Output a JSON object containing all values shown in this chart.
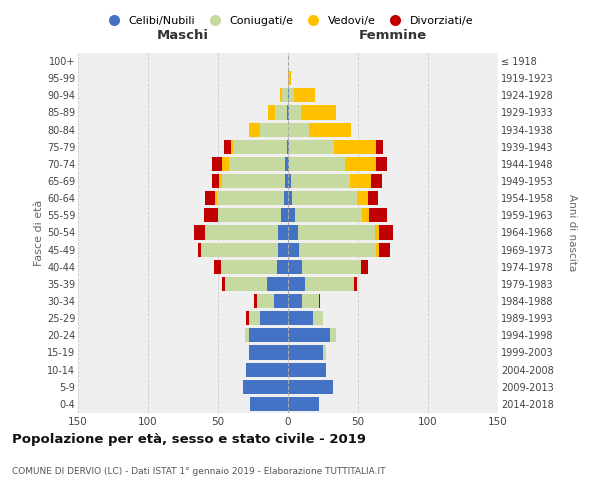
{
  "age_groups": [
    "0-4",
    "5-9",
    "10-14",
    "15-19",
    "20-24",
    "25-29",
    "30-34",
    "35-39",
    "40-44",
    "45-49",
    "50-54",
    "55-59",
    "60-64",
    "65-69",
    "70-74",
    "75-79",
    "80-84",
    "85-89",
    "90-94",
    "95-99",
    "100+"
  ],
  "birth_years": [
    "2014-2018",
    "2009-2013",
    "2004-2008",
    "1999-2003",
    "1994-1998",
    "1989-1993",
    "1984-1988",
    "1979-1983",
    "1974-1978",
    "1969-1973",
    "1964-1968",
    "1959-1963",
    "1954-1958",
    "1949-1953",
    "1944-1948",
    "1939-1943",
    "1934-1938",
    "1929-1933",
    "1924-1928",
    "1919-1923",
    "≤ 1918"
  ],
  "males": {
    "celibi": [
      27,
      32,
      30,
      28,
      28,
      20,
      10,
      15,
      8,
      7,
      7,
      5,
      3,
      2,
      2,
      1,
      0,
      1,
      0,
      0,
      0
    ],
    "coniugati": [
      0,
      0,
      0,
      0,
      3,
      8,
      12,
      30,
      40,
      55,
      52,
      45,
      48,
      45,
      40,
      38,
      20,
      8,
      4,
      0,
      0
    ],
    "vedovi": [
      0,
      0,
      0,
      0,
      0,
      0,
      0,
      0,
      0,
      0,
      0,
      0,
      1,
      2,
      5,
      2,
      8,
      5,
      2,
      0,
      0
    ],
    "divorziati": [
      0,
      0,
      0,
      0,
      0,
      2,
      2,
      2,
      5,
      2,
      8,
      10,
      7,
      5,
      7,
      5,
      0,
      0,
      0,
      0,
      0
    ]
  },
  "females": {
    "nubili": [
      22,
      32,
      27,
      25,
      30,
      18,
      10,
      12,
      10,
      8,
      7,
      5,
      3,
      2,
      1,
      1,
      0,
      1,
      1,
      0,
      0
    ],
    "coniugate": [
      0,
      0,
      0,
      2,
      4,
      7,
      12,
      35,
      42,
      55,
      55,
      48,
      46,
      42,
      40,
      32,
      15,
      8,
      3,
      0,
      0
    ],
    "vedove": [
      0,
      0,
      0,
      0,
      0,
      0,
      0,
      0,
      0,
      2,
      3,
      5,
      8,
      15,
      22,
      30,
      30,
      25,
      15,
      2,
      0
    ],
    "divorziate": [
      0,
      0,
      0,
      0,
      0,
      0,
      1,
      2,
      5,
      8,
      10,
      13,
      7,
      8,
      8,
      5,
      0,
      0,
      0,
      0,
      0
    ]
  },
  "colors": {
    "celibi": "#4472c4",
    "coniugati": "#c5d9a0",
    "vedovi": "#ffc000",
    "divorziati": "#c00000"
  },
  "title": "Popolazione per età, sesso e stato civile - 2019",
  "subtitle": "COMUNE DI DERVIO (LC) - Dati ISTAT 1° gennaio 2019 - Elaborazione TUTTITALIA.IT",
  "xlabel_left": "Maschi",
  "xlabel_right": "Femmine",
  "ylabel_left": "Fasce di età",
  "ylabel_right": "Anni di nascita",
  "legend_labels": [
    "Celibi/Nubili",
    "Coniugati/e",
    "Vedovi/e",
    "Divorziati/e"
  ],
  "xlim": 150,
  "background_color": "#efefef"
}
